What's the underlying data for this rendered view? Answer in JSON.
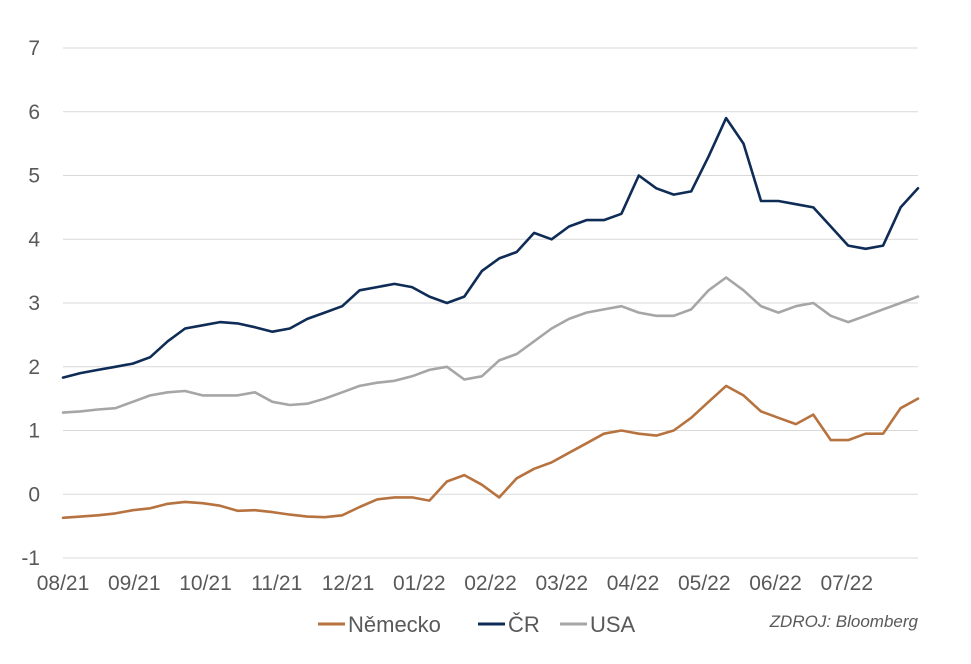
{
  "chart_data": {
    "type": "line",
    "title": "",
    "xlabel": "",
    "ylabel": "",
    "ylim": [
      -1,
      7
    ],
    "y_ticks": [
      -1,
      0,
      1,
      2,
      3,
      4,
      5,
      6,
      7
    ],
    "x_ticks": [
      "08/21",
      "09/21",
      "10/21",
      "11/21",
      "12/21",
      "01/22",
      "02/22",
      "03/22",
      "04/22",
      "05/22",
      "06/22",
      "07/22"
    ],
    "grid": "horizontal",
    "legend_position": "bottom",
    "source": "ZDROJ: Bloomberg",
    "x": [
      "08/21",
      "08/21",
      "08/21",
      "08/21",
      "09/21",
      "09/21",
      "09/21",
      "09/21",
      "10/21",
      "10/21",
      "10/21",
      "10/21",
      "11/21",
      "11/21",
      "11/21",
      "11/21",
      "12/21",
      "12/21",
      "12/21",
      "12/21",
      "01/22",
      "01/22",
      "01/22",
      "01/22",
      "02/22",
      "02/22",
      "02/22",
      "02/22",
      "03/22",
      "03/22",
      "03/22",
      "03/22",
      "04/22",
      "04/22",
      "04/22",
      "04/22",
      "05/22",
      "05/22",
      "05/22",
      "05/22",
      "06/22",
      "06/22",
      "06/22",
      "06/22",
      "07/22",
      "07/22",
      "07/22",
      "07/22",
      "08/22",
      "08/22"
    ],
    "series": [
      {
        "name": "Německo",
        "color": "#B7733F",
        "values": [
          -0.37,
          -0.35,
          -0.33,
          -0.3,
          -0.25,
          -0.22,
          -0.15,
          -0.12,
          -0.14,
          -0.18,
          -0.26,
          -0.25,
          -0.28,
          -0.32,
          -0.35,
          -0.36,
          -0.33,
          -0.2,
          -0.08,
          -0.05,
          -0.05,
          -0.1,
          0.2,
          0.3,
          0.15,
          -0.05,
          0.25,
          0.4,
          0.5,
          0.65,
          0.8,
          0.95,
          1.0,
          0.95,
          0.92,
          1.0,
          1.2,
          1.45,
          1.7,
          1.55,
          1.3,
          1.2,
          1.1,
          1.25,
          0.85,
          0.85,
          0.95,
          0.95,
          1.35,
          1.5
        ]
      },
      {
        "name": "ČR",
        "color": "#0E2C56",
        "values": [
          1.83,
          1.9,
          1.95,
          2.0,
          2.05,
          2.15,
          2.4,
          2.6,
          2.65,
          2.7,
          2.68,
          2.62,
          2.55,
          2.6,
          2.75,
          2.85,
          2.95,
          3.2,
          3.25,
          3.3,
          3.25,
          3.1,
          3.0,
          3.1,
          3.5,
          3.7,
          3.8,
          4.1,
          4.0,
          4.2,
          4.3,
          4.3,
          4.4,
          5.0,
          4.8,
          4.7,
          4.75,
          5.3,
          5.9,
          5.5,
          4.6,
          4.6,
          4.55,
          4.5,
          4.2,
          3.9,
          3.85,
          3.9,
          4.5,
          4.8
        ]
      },
      {
        "name": "USA",
        "color": "#A6A6A6",
        "values": [
          1.28,
          1.3,
          1.33,
          1.35,
          1.45,
          1.55,
          1.6,
          1.62,
          1.55,
          1.55,
          1.55,
          1.6,
          1.45,
          1.4,
          1.42,
          1.5,
          1.6,
          1.7,
          1.75,
          1.78,
          1.85,
          1.95,
          2.0,
          1.8,
          1.85,
          2.1,
          2.2,
          2.4,
          2.6,
          2.75,
          2.85,
          2.9,
          2.95,
          2.85,
          2.8,
          2.8,
          2.9,
          3.2,
          3.4,
          3.2,
          2.95,
          2.85,
          2.95,
          3.0,
          2.8,
          2.7,
          2.8,
          2.9,
          3.0,
          3.1
        ]
      }
    ]
  }
}
